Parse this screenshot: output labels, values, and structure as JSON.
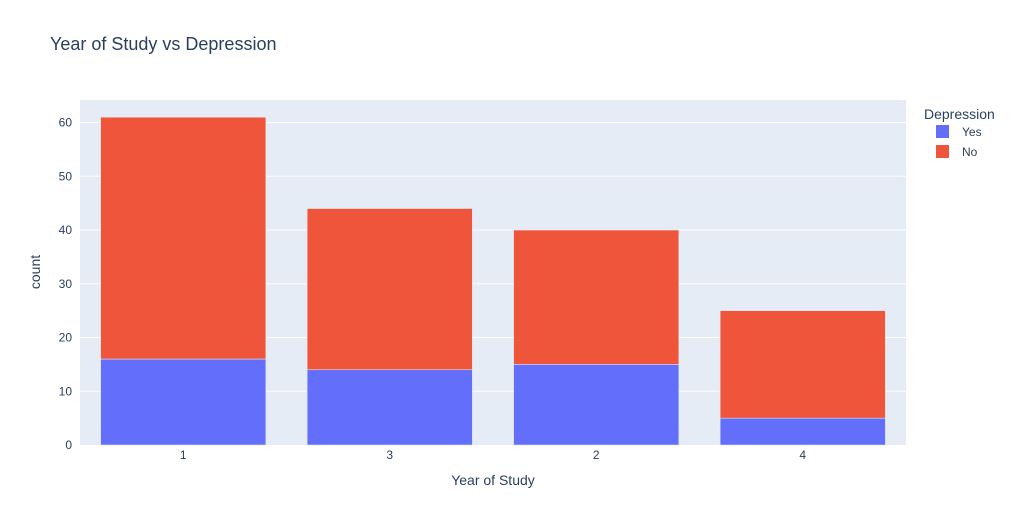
{
  "chart_data": {
    "type": "bar",
    "barmode": "stack",
    "title": "Year of Study vs Depression",
    "xlabel": "Year of Study",
    "ylabel": "count",
    "categories": [
      "1",
      "3",
      "2",
      "4"
    ],
    "yticks": [
      0,
      10,
      20,
      30,
      40,
      50,
      60
    ],
    "ylim": [
      0,
      64.2
    ],
    "grid": true,
    "legend": {
      "title": "Depression",
      "position": "top-right"
    },
    "series": [
      {
        "name": "Yes",
        "color": "#636efa",
        "values": [
          16,
          14,
          15,
          5
        ]
      },
      {
        "name": "No",
        "color": "#ef553b",
        "values": [
          45,
          30,
          25,
          20
        ]
      }
    ],
    "colors": {
      "plot_background": "#e5ecf6",
      "grid": "#ffffff",
      "text": "#2a3f5f"
    }
  }
}
